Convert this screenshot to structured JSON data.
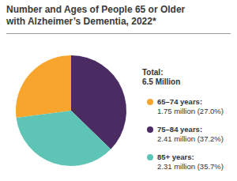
{
  "chart_data": {
    "type": "pie",
    "title": "Number and Ages of People 65 or Older with Alzheimer’s Dementia, 2022*",
    "categories": [
      "65–74 years:",
      "75–84 years:",
      "85+ years:"
    ],
    "values": [
      1.75,
      2.41,
      2.31
    ],
    "value_labels": [
      "1.75 million (27.0%)",
      "2.41 million (37.2%)",
      "2.31 million (35.7%)"
    ],
    "colors": [
      "#F7A52C",
      "#4A2B62",
      "#5EC5B6"
    ],
    "annotations": [
      "Total:",
      "6.5 Million"
    ]
  }
}
